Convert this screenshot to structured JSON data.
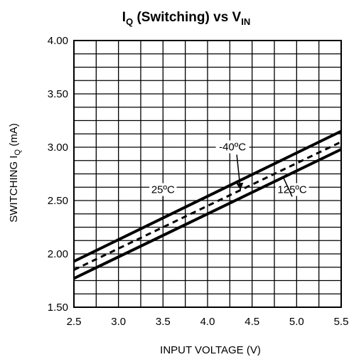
{
  "chart_data": {
    "type": "line",
    "title": {
      "prefix": "I",
      "prefix_sub": "Q",
      "main": " (Switching) vs V",
      "main_sub": "IN"
    },
    "xlabel": "INPUT VOLTAGE (V)",
    "ylabel": {
      "main": "SWITCHING I",
      "sub": "Q",
      "suffix": " (mA)"
    },
    "xlim": [
      2.5,
      5.5
    ],
    "ylim": [
      1.5,
      4.0
    ],
    "x_ticks": [
      "2.5",
      "3.0",
      "3.5",
      "4.0",
      "4.5",
      "5.0",
      "5.5"
    ],
    "y_ticks": [
      "1.50",
      "2.00",
      "2.50",
      "3.00",
      "3.50",
      "4.00"
    ],
    "x_minor_step": 0.25,
    "y_minor_step": 0.125,
    "grid": true,
    "series": [
      {
        "name": "25ºC",
        "style": "solid",
        "x": [
          2.5,
          5.5
        ],
        "y": [
          1.93,
          3.15
        ]
      },
      {
        "name": "-40ºC",
        "style": "dashed",
        "x": [
          2.5,
          5.5
        ],
        "y": [
          1.85,
          3.05
        ]
      },
      {
        "name": "125ºC",
        "style": "solid",
        "x": [
          2.5,
          5.5
        ],
        "y": [
          1.77,
          2.98
        ]
      }
    ],
    "annotations": [
      {
        "text": "-40ºC",
        "series": "-40ºC",
        "at_x": 4.37,
        "label_x": 4.28,
        "label_y": 2.97
      },
      {
        "text": "25ºC",
        "series": "25ºC",
        "at_x": 3.5,
        "label_x": 3.5,
        "label_y": 2.57
      },
      {
        "text": "125ºC",
        "series": "125ºC",
        "at_x": 4.85,
        "label_x": 4.95,
        "label_y": 2.57
      }
    ]
  }
}
